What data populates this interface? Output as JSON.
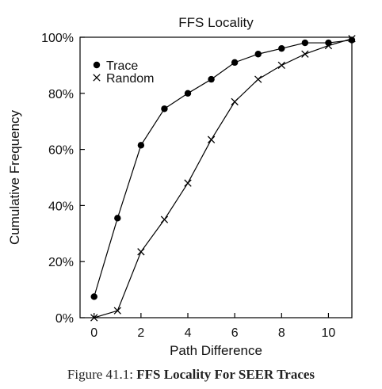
{
  "chart_data": {
    "type": "line",
    "title": "FFS Locality",
    "xlabel": "Path Difference",
    "ylabel": "Cumulative Frequency",
    "xlim": [
      -0.6,
      11
    ],
    "ylim": [
      0,
      100
    ],
    "x_ticks": [
      0,
      2,
      4,
      6,
      8,
      10
    ],
    "x_tick_labels": [
      "0",
      "2",
      "4",
      "6",
      "8",
      "10"
    ],
    "y_ticks": [
      0,
      20,
      40,
      60,
      80,
      100
    ],
    "y_tick_labels": [
      "0%",
      "20%",
      "40%",
      "60%",
      "80%",
      "100%"
    ],
    "legend_position": "top-left",
    "grid": false,
    "series": [
      {
        "name": "Trace",
        "marker": "filled-circle",
        "x": [
          0,
          1,
          2,
          3,
          4,
          5,
          6,
          7,
          8,
          9,
          10,
          11
        ],
        "values": [
          7.5,
          35.5,
          61.5,
          74.5,
          80,
          85,
          91,
          94,
          96,
          98,
          98,
          99
        ]
      },
      {
        "name": "Random",
        "marker": "x",
        "x": [
          0,
          1,
          2,
          3,
          4,
          5,
          6,
          7,
          8,
          9,
          10,
          11
        ],
        "values": [
          0,
          2.5,
          23.5,
          35,
          48,
          63.5,
          77,
          85,
          90,
          94,
          97,
          99.5
        ]
      }
    ]
  },
  "caption": {
    "prefix": "Figure 41.1: ",
    "bold": "FFS Locality For SEER Traces"
  }
}
